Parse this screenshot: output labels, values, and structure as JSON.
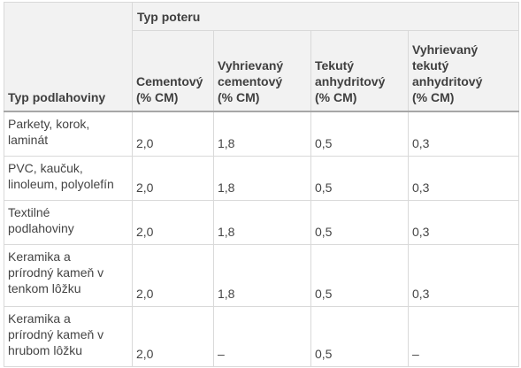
{
  "table": {
    "row_header": "Typ podlahoviny",
    "group_header": "Typ poteru",
    "columns": [
      {
        "line1": "Cementový",
        "line2": "(% CM)",
        "line3": "",
        "line4": ""
      },
      {
        "line1": "Vyhrievaný",
        "line2": "cementový",
        "line3": "(% CM)",
        "line4": ""
      },
      {
        "line1": "Tekutý",
        "line2": "anhydritový",
        "line3": "(% CM)",
        "line4": ""
      },
      {
        "line1": "Vyhrievaný",
        "line2": "tekutý",
        "line3": "anhydritový",
        "line4": "(% CM)"
      }
    ],
    "rows": [
      {
        "label": [
          "Parkety, korok,",
          "laminát"
        ],
        "values": [
          "2,0",
          "1,8",
          "0,5",
          "0,3"
        ]
      },
      {
        "label": [
          "PVC, kaučuk,",
          "linoleum, polyolefín"
        ],
        "values": [
          "2,0",
          "1,8",
          "0,5",
          "0,3"
        ]
      },
      {
        "label": [
          "Textilné",
          "podlahoviny"
        ],
        "values": [
          "2,0",
          "1,8",
          "0,5",
          "0,3"
        ]
      },
      {
        "label": [
          "Keramika a",
          "prírodný kameň v",
          "tenkom lôžku"
        ],
        "values": [
          "2,0",
          "1,8",
          "0,5",
          "0,3"
        ]
      },
      {
        "label": [
          "Keramika a",
          "prírodný kameň v",
          "hrubom lôžku"
        ],
        "values": [
          "2,0",
          "–",
          "0,5",
          "–"
        ]
      }
    ]
  }
}
